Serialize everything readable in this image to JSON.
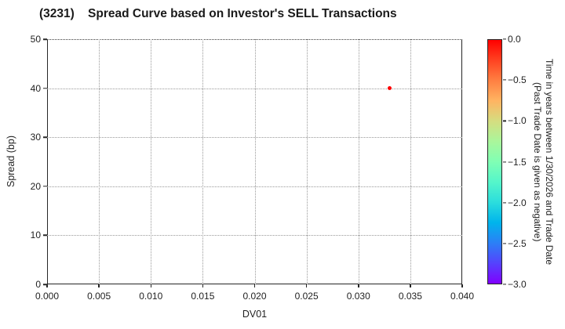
{
  "title": "(3231)    Spread Curve based on Investor's SELL Transactions",
  "chart_data": {
    "type": "scatter",
    "title": "(3231)    Spread Curve based on Investor's SELL Transactions",
    "xlabel": "DV01",
    "ylabel": "Spread (bp)",
    "xlim": [
      0.0,
      0.04
    ],
    "ylim": [
      0,
      50
    ],
    "grid": true,
    "grid_style": "dotted",
    "x_ticks": [
      {
        "v": 0.0,
        "label": "0.000"
      },
      {
        "v": 0.005,
        "label": "0.005"
      },
      {
        "v": 0.01,
        "label": "0.010"
      },
      {
        "v": 0.015,
        "label": "0.015"
      },
      {
        "v": 0.02,
        "label": "0.020"
      },
      {
        "v": 0.025,
        "label": "0.025"
      },
      {
        "v": 0.03,
        "label": "0.030"
      },
      {
        "v": 0.035,
        "label": "0.035"
      },
      {
        "v": 0.04,
        "label": "0.040"
      }
    ],
    "y_ticks": [
      {
        "v": 0,
        "label": "0"
      },
      {
        "v": 10,
        "label": "10"
      },
      {
        "v": 20,
        "label": "20"
      },
      {
        "v": 30,
        "label": "30"
      },
      {
        "v": 40,
        "label": "40"
      },
      {
        "v": 50,
        "label": "50"
      }
    ],
    "points": [
      {
        "x": 0.033,
        "y": 40,
        "time_value": 0.0,
        "color": "#ff0000"
      }
    ],
    "colorbar": {
      "label_line1": "Time in years between 1/30/2026 and Trade Date",
      "label_line2": "(Past Trade Date is given as negative)",
      "colormap": "rainbow",
      "range": [
        0.0,
        -3.0
      ],
      "ticks": [
        {
          "v": 0.0,
          "label": "0.0"
        },
        {
          "v": -0.5,
          "label": "−0.5"
        },
        {
          "v": -1.0,
          "label": "−1.0"
        },
        {
          "v": -1.5,
          "label": "−1.5"
        },
        {
          "v": -2.0,
          "label": "−2.0"
        },
        {
          "v": -2.5,
          "label": "−2.5"
        },
        {
          "v": -3.0,
          "label": "−3.0"
        }
      ],
      "gradient": [
        {
          "pos": 0,
          "color": "#ff0000"
        },
        {
          "pos": 8.3,
          "color": "#ff4221"
        },
        {
          "pos": 16.7,
          "color": "#ff8042"
        },
        {
          "pos": 25,
          "color": "#ffb462"
        },
        {
          "pos": 33.3,
          "color": "#d5dd80"
        },
        {
          "pos": 41.7,
          "color": "#aaf69b"
        },
        {
          "pos": 50,
          "color": "#80ffb4"
        },
        {
          "pos": 58.3,
          "color": "#55f6ca"
        },
        {
          "pos": 66.7,
          "color": "#2bdddd"
        },
        {
          "pos": 75,
          "color": "#00b4ec"
        },
        {
          "pos": 83.3,
          "color": "#2b80f6"
        },
        {
          "pos": 91.7,
          "color": "#5542fd"
        },
        {
          "pos": 100,
          "color": "#8000ff"
        }
      ]
    }
  }
}
